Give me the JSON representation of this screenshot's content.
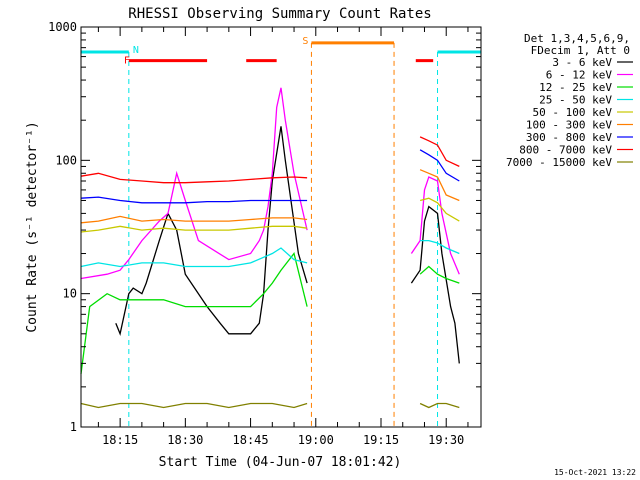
{
  "chart_data": {
    "type": "line",
    "title": "RHESSI Observing Summary Count Rates",
    "xlabel": "Start Time (04-Jun-07 18:01:42)",
    "ylabel": "Count Rate (s⁻¹ detector⁻¹)",
    "y_scale": "log",
    "ylim": [
      1,
      1000
    ],
    "xlim": [
      "18:06",
      "19:38"
    ],
    "x_ticks": [
      "18:15",
      "18:30",
      "18:45",
      "19:00",
      "19:15",
      "19:30"
    ],
    "y_ticks": [
      "1",
      "10",
      "100",
      "1000"
    ],
    "legend_header": [
      "Det 1,3,4,5,6,9,",
      "FDecim 1, Att 0"
    ],
    "legend_position": "right",
    "footer": "15-Oct-2021 13:22",
    "flags": [
      {
        "label": "N",
        "kind": "night",
        "color": "#00e5e5",
        "intervals": [
          [
            "18:06",
            "18:17"
          ],
          [
            "19:28",
            "19:38"
          ]
        ],
        "level": 650
      },
      {
        "label": "F",
        "kind": "flare",
        "color": "#ff0000",
        "intervals": [
          [
            "18:17",
            "18:35"
          ],
          [
            "18:44",
            "18:51"
          ],
          [
            "19:23",
            "19:27"
          ]
        ],
        "level": 560
      },
      {
        "label": "S",
        "kind": "saa",
        "color": "#ff7f00",
        "intervals": [
          [
            "18:59",
            "19:18"
          ]
        ],
        "level": 760
      }
    ],
    "series": [
      {
        "name": "3 - 6 keV",
        "color": "#000000",
        "x": [
          "18:06",
          "18:14",
          "18:15",
          "18:17",
          "18:18",
          "18:20",
          "18:21",
          "18:24",
          "18:26",
          "18:28",
          "18:30",
          "18:35",
          "18:38",
          "18:40",
          "18:45",
          "18:47",
          "18:48",
          "18:49",
          "18:50",
          "18:52",
          "18:53",
          "18:56",
          "18:58",
          "19:21",
          "19:22",
          "19:24",
          "19:25",
          "19:26",
          "19:28",
          "19:29",
          "19:31",
          "19:32",
          "19:33"
        ],
        "y": [
          null,
          6,
          5,
          10,
          11,
          10,
          12,
          25,
          40,
          30,
          14,
          8,
          6,
          5,
          5,
          6,
          10,
          30,
          70,
          180,
          100,
          20,
          12,
          null,
          12,
          15,
          35,
          45,
          40,
          20,
          8,
          6,
          3
        ]
      },
      {
        "name": "6 - 12 keV",
        "color": "#ff00ff",
        "x": [
          "18:06",
          "18:12",
          "18:15",
          "18:17",
          "18:20",
          "18:24",
          "18:26",
          "18:28",
          "18:30",
          "18:33",
          "18:40",
          "18:45",
          "18:47",
          "18:48",
          "18:49",
          "18:50",
          "18:51",
          "18:52",
          "18:53",
          "18:55",
          "18:58",
          "19:21",
          "19:22",
          "19:24",
          "19:25",
          "19:26",
          "19:28",
          "19:29",
          "19:31",
          "19:33"
        ],
        "y": [
          13,
          14,
          15,
          18,
          25,
          35,
          40,
          80,
          50,
          25,
          18,
          20,
          25,
          30,
          45,
          80,
          250,
          350,
          200,
          80,
          30,
          null,
          20,
          25,
          60,
          75,
          70,
          40,
          20,
          14
        ]
      },
      {
        "name": "12 - 25 keV",
        "color": "#00dd00",
        "x": [
          "18:06",
          "18:08",
          "18:12",
          "18:15",
          "18:20",
          "18:25",
          "18:30",
          "18:35",
          "18:40",
          "18:45",
          "18:48",
          "18:50",
          "18:52",
          "18:55",
          "18:58",
          "19:21",
          "19:24",
          "19:26",
          "19:28",
          "19:30",
          "19:33"
        ],
        "y": [
          2.5,
          8,
          10,
          9,
          9,
          9,
          8,
          8,
          8,
          8,
          10,
          12,
          15,
          20,
          8,
          null,
          14,
          16,
          14,
          13,
          12
        ]
      },
      {
        "name": "25 - 50 keV",
        "color": "#00e5e5",
        "x": [
          "18:06",
          "18:10",
          "18:15",
          "18:20",
          "18:25",
          "18:30",
          "18:35",
          "18:40",
          "18:45",
          "18:50",
          "18:52",
          "18:55",
          "18:58",
          "19:21",
          "19:24",
          "19:26",
          "19:28",
          "19:30",
          "19:33"
        ],
        "y": [
          16,
          17,
          16,
          17,
          17,
          16,
          16,
          16,
          17,
          20,
          22,
          18,
          17,
          null,
          25,
          25,
          24,
          22,
          20
        ]
      },
      {
        "name": "50 - 100 keV",
        "color": "#c8c800",
        "x": [
          "18:06",
          "18:10",
          "18:15",
          "18:20",
          "18:25",
          "18:30",
          "18:35",
          "18:40",
          "18:45",
          "18:50",
          "18:55",
          "18:58",
          "19:21",
          "19:24",
          "19:26",
          "19:28",
          "19:30",
          "19:33"
        ],
        "y": [
          29,
          30,
          32,
          30,
          31,
          30,
          30,
          30,
          31,
          32,
          32,
          31,
          null,
          50,
          52,
          48,
          40,
          35
        ]
      },
      {
        "name": "100 - 300 keV",
        "color": "#ff7f00",
        "x": [
          "18:06",
          "18:10",
          "18:15",
          "18:20",
          "18:25",
          "18:30",
          "18:35",
          "18:40",
          "18:45",
          "18:50",
          "18:55",
          "18:58",
          "19:21",
          "19:24",
          "19:26",
          "19:28",
          "19:30",
          "19:33"
        ],
        "y": [
          34,
          35,
          38,
          35,
          36,
          35,
          35,
          35,
          36,
          37,
          37,
          36,
          null,
          85,
          80,
          75,
          55,
          50
        ]
      },
      {
        "name": "300 - 800 keV",
        "color": "#0000ff",
        "x": [
          "18:06",
          "18:10",
          "18:15",
          "18:20",
          "18:25",
          "18:30",
          "18:35",
          "18:40",
          "18:45",
          "18:50",
          "18:55",
          "18:58",
          "19:21",
          "19:24",
          "19:26",
          "19:28",
          "19:30",
          "19:33"
        ],
        "y": [
          52,
          53,
          50,
          48,
          48,
          48,
          49,
          49,
          50,
          50,
          50,
          50,
          null,
          120,
          110,
          100,
          80,
          70
        ]
      },
      {
        "name": "800 - 7000 keV",
        "color": "#ff0000",
        "x": [
          "18:06",
          "18:10",
          "18:15",
          "18:20",
          "18:25",
          "18:30",
          "18:35",
          "18:40",
          "18:45",
          "18:50",
          "18:55",
          "18:58",
          "19:21",
          "19:24",
          "19:26",
          "19:28",
          "19:30",
          "19:33"
        ],
        "y": [
          76,
          80,
          72,
          70,
          68,
          68,
          69,
          70,
          72,
          74,
          75,
          74,
          null,
          150,
          140,
          130,
          100,
          90
        ]
      },
      {
        "name": "7000 - 15000 keV",
        "color": "#808000",
        "x": [
          "18:06",
          "18:10",
          "18:15",
          "18:20",
          "18:25",
          "18:30",
          "18:35",
          "18:40",
          "18:45",
          "18:50",
          "18:55",
          "18:58",
          "19:21",
          "19:24",
          "19:26",
          "19:28",
          "19:30",
          "19:33"
        ],
        "y": [
          1.5,
          1.4,
          1.5,
          1.5,
          1.4,
          1.5,
          1.5,
          1.4,
          1.5,
          1.5,
          1.4,
          1.5,
          null,
          1.5,
          1.4,
          1.5,
          1.5,
          1.4
        ]
      }
    ]
  }
}
